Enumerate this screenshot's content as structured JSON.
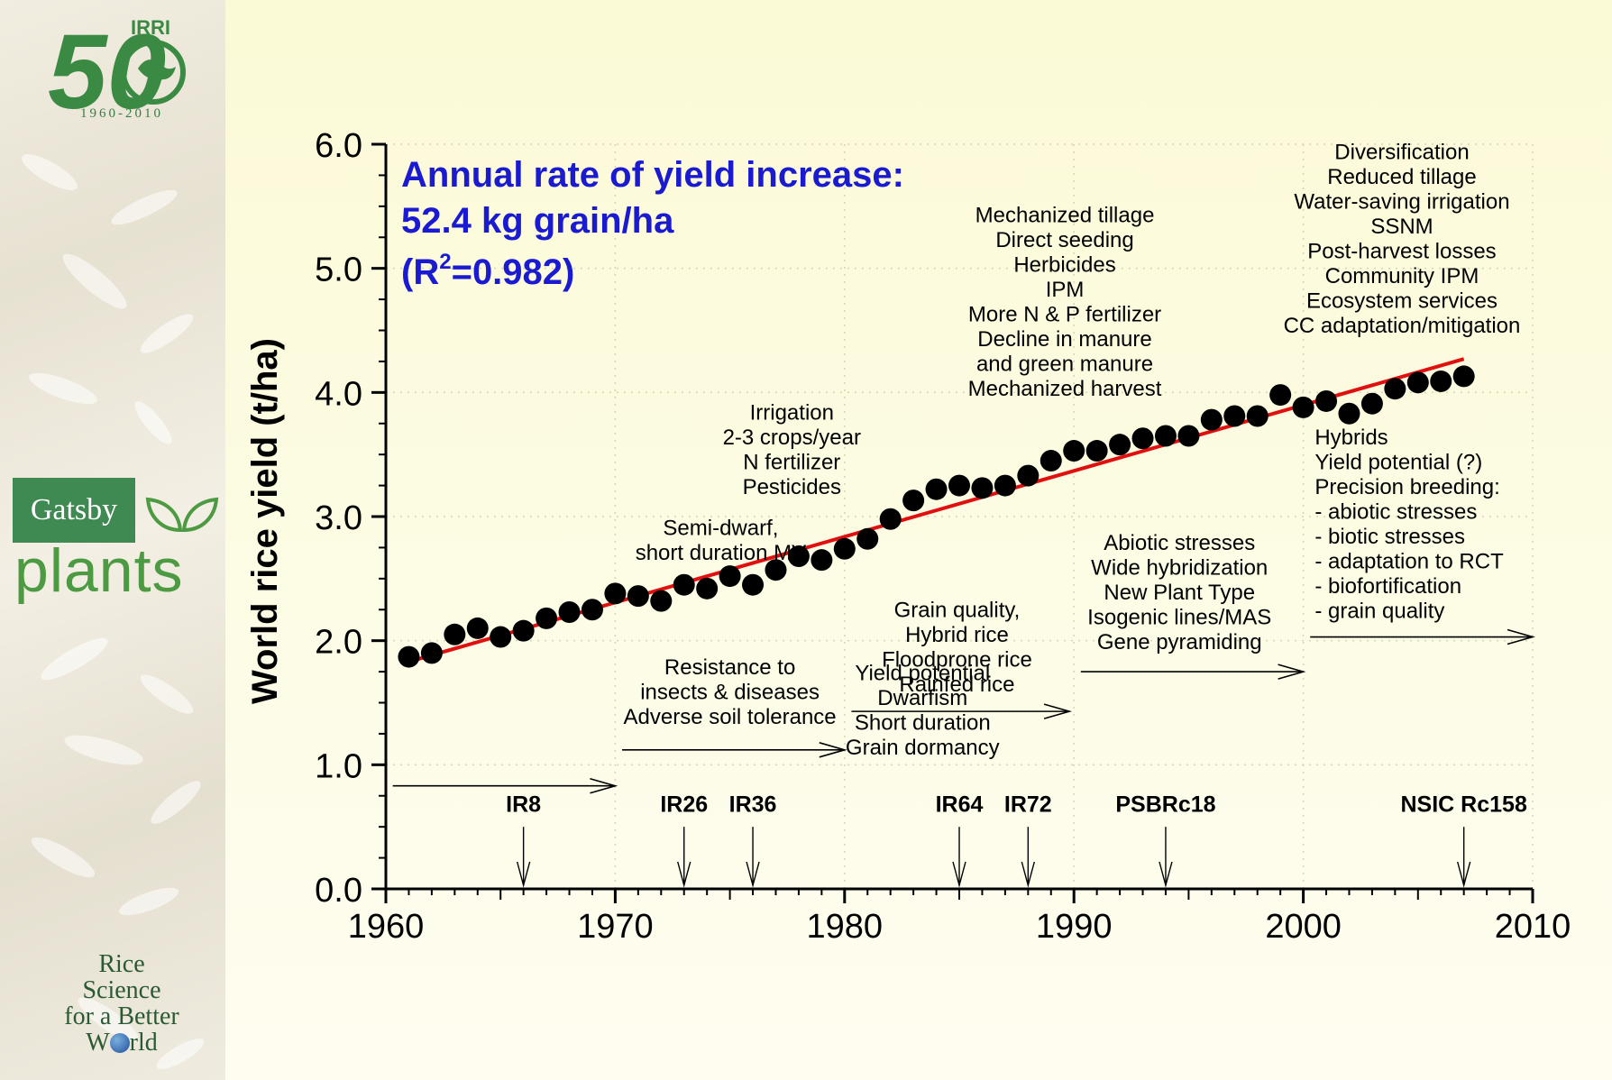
{
  "branding": {
    "irri_logo": {
      "number": "50",
      "org": "IRRI",
      "years": "1960-2010"
    },
    "gatsby_logo": {
      "top": "Gatsby",
      "bottom": "plants"
    },
    "rice_logo": [
      "Rice",
      "Science",
      "for a Better",
      "W",
      "rld"
    ]
  },
  "chart_data": {
    "type": "scatter",
    "title": "",
    "xlabel": "",
    "ylabel": "World rice yield (t/ha)",
    "xlim": [
      1960,
      2010
    ],
    "ylim": [
      0,
      6
    ],
    "x_ticks": [
      "1960",
      "1970",
      "1980",
      "1990",
      "2000",
      "2010"
    ],
    "y_ticks": [
      "0.0",
      "1.0",
      "2.0",
      "3.0",
      "4.0",
      "5.0",
      "6.0"
    ],
    "grid": true,
    "colors": {
      "points": "#000000",
      "trend": "#e01010",
      "annotation": "#1a1ad0"
    },
    "series": [
      {
        "x": [
          1961,
          1962,
          1963,
          1964,
          1965,
          1966,
          1967,
          1968,
          1969,
          1970,
          1971,
          1972,
          1973,
          1974,
          1975,
          1976,
          1977,
          1978,
          1979,
          1980,
          1981,
          1982,
          1983,
          1984,
          1985,
          1986,
          1987,
          1988,
          1989,
          1990,
          1991,
          1992,
          1993,
          1994,
          1995,
          1996,
          1997,
          1998,
          1999,
          2000,
          2001,
          2002,
          2003,
          2004,
          2005,
          2006,
          2007
        ],
        "y": [
          1.87,
          1.9,
          2.05,
          2.1,
          2.03,
          2.08,
          2.18,
          2.23,
          2.25,
          2.38,
          2.36,
          2.32,
          2.45,
          2.42,
          2.52,
          2.45,
          2.57,
          2.68,
          2.65,
          2.74,
          2.82,
          2.98,
          3.13,
          3.22,
          3.25,
          3.23,
          3.25,
          3.33,
          3.45,
          3.53,
          3.53,
          3.58,
          3.63,
          3.65,
          3.65,
          3.78,
          3.81,
          3.81,
          3.98,
          3.88,
          3.93,
          3.83,
          3.91,
          4.03,
          4.08,
          4.09,
          4.13
        ]
      }
    ],
    "trend_line": {
      "x": [
        1961,
        2007
      ],
      "y": [
        1.83,
        4.27
      ]
    },
    "rate_annotation": {
      "line1": "Annual rate of yield increase:",
      "line2": "52.4 kg grain/ha",
      "line3_prefix": "(R",
      "line3_sup": "2",
      "line3_suffix": "=0.982)"
    },
    "text_blocks": [
      {
        "x": 1983.4,
        "y": 1.68,
        "lines": [
          "Yield potential",
          "Dwarfism",
          "Short duration",
          "Grain dormancy"
        ]
      },
      {
        "x": 1975.0,
        "y": 1.73,
        "lines": [
          "Resistance to",
          "insects & diseases",
          "Adverse soil tolerance"
        ]
      },
      {
        "x": 1974.6,
        "y": 2.85,
        "lines": [
          "Semi-dwarf,",
          "short duration MV"
        ]
      },
      {
        "x": 1977.7,
        "y": 3.78,
        "lines": [
          "Irrigation",
          "2-3 crops/year",
          "N fertilizer",
          "Pesticides"
        ]
      },
      {
        "x": 1984.9,
        "y": 2.19,
        "lines": [
          "Grain quality,",
          "Hybrid rice",
          "Floodprone rice",
          "Rainfed rice"
        ]
      },
      {
        "x": 1989.6,
        "y": 5.37,
        "lines": [
          "Mechanized tillage",
          "Direct seeding",
          "Herbicides",
          "IPM",
          "More N & P fertilizer",
          "Decline in manure",
          "and green manure",
          "Mechanized harvest"
        ]
      },
      {
        "x": 1994.6,
        "y": 2.73,
        "lines": [
          "Abiotic stresses",
          "Wide hybridization",
          "New Plant Type",
          "Isogenic lines/MAS",
          "Gene pyramiding"
        ]
      },
      {
        "x": 2004.3,
        "y": 5.88,
        "lines": [
          "Diversification",
          "Reduced tillage",
          "Water-saving irrigation",
          "SSNM",
          "Post-harvest losses",
          "Community IPM",
          "Ecosystem services",
          "CC adaptation/mitigation"
        ]
      }
    ],
    "left_text_block": {
      "x": 2000.5,
      "y": 3.58,
      "lines": [
        "Hybrids",
        "Yield potential (?)",
        "Precision breeding:",
        "- abiotic stresses",
        "- biotic stresses",
        "- adaptation to RCT",
        "- biofortification",
        "- grain quality"
      ]
    },
    "era_arrows": [
      {
        "x1": 1960.3,
        "x2": 1970.0,
        "y": 0.83
      },
      {
        "x1": 1970.3,
        "x2": 1980.0,
        "y": 1.12
      },
      {
        "x1": 1980.3,
        "x2": 1989.8,
        "y": 1.43
      },
      {
        "x1": 1990.3,
        "x2": 2000.0,
        "y": 1.75
      },
      {
        "x1": 2000.3,
        "x2": 2010.0,
        "y": 2.03
      }
    ],
    "varieties": [
      {
        "name": "IR8",
        "x": 1966
      },
      {
        "name": "IR26",
        "x": 1973
      },
      {
        "name": "IR36",
        "x": 1976
      },
      {
        "name": "IR64",
        "x": 1985
      },
      {
        "name": "IR72",
        "x": 1988
      },
      {
        "name": "PSBRc18",
        "x": 1994
      },
      {
        "name": "NSIC Rc158",
        "x": 2007
      }
    ]
  }
}
